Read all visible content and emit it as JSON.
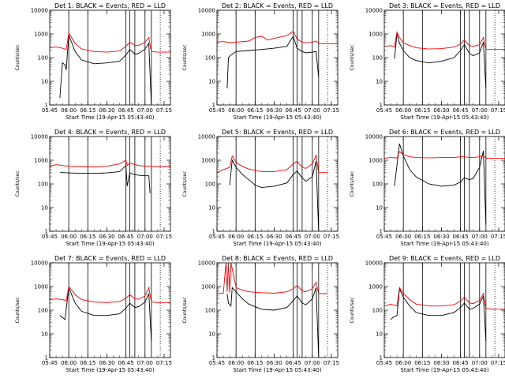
{
  "figure": {
    "background": "#ffffff",
    "events_color": "#000000",
    "lld_color": "#ff0000"
  },
  "chart_data": [
    {
      "type": "line",
      "title": "Det  1: BLACK = Events, RED = LLD",
      "xlabel": "Start Time (19-Apr-15 05:43:40)",
      "ylabel": "Counts/sec",
      "yscale": "log",
      "ylim": [
        1,
        10000
      ],
      "ytick_labels": [
        "1",
        "10",
        "100",
        "1000",
        "10000"
      ],
      "xlim": [
        "05:45",
        "07:20"
      ],
      "xtick_labels": [
        "05:45",
        "06:00",
        "06:15",
        "06:30",
        "06:45",
        "07:00",
        "07:15"
      ],
      "series": [
        {
          "name": "Events",
          "color": "#000000",
          "x": [
            "05:53",
            "05:55",
            "05:57",
            "05:58",
            "06:00",
            "06:05",
            "06:10",
            "06:20",
            "06:30",
            "06:40",
            "06:45",
            "06:48",
            "06:52",
            "06:55",
            "07:00",
            "07:03",
            "07:05"
          ],
          "y": [
            2,
            60,
            50,
            30,
            900,
            180,
            80,
            55,
            60,
            70,
            130,
            220,
            140,
            150,
            230,
            400,
            1
          ]
        },
        {
          "name": "LLD",
          "color": "#ff0000",
          "x": [
            "05:45",
            "05:50",
            "05:55",
            "05:58",
            "06:00",
            "06:05",
            "06:10",
            "06:20",
            "06:30",
            "06:40",
            "06:45",
            "06:48",
            "06:52",
            "06:55",
            "07:00",
            "07:03",
            "07:05",
            "07:10",
            "07:15",
            "07:20"
          ],
          "y": [
            260,
            280,
            250,
            220,
            1100,
            400,
            230,
            180,
            170,
            190,
            300,
            450,
            320,
            330,
            450,
            700,
            180,
            170,
            170,
            170
          ]
        }
      ]
    },
    {
      "type": "line",
      "title": "Det  2: BLACK = Events, RED = LLD",
      "xlabel": "Start Time (19-Apr-15 05:43:40)",
      "ylabel": "Counts/sec",
      "yscale": "log",
      "ylim": [
        1,
        10000
      ],
      "ytick_labels": [
        "1",
        "10",
        "100",
        "1000",
        "10000"
      ],
      "xlim": [
        "05:45",
        "07:20"
      ],
      "xtick_labels": [
        "05:45",
        "06:00",
        "06:15",
        "06:30",
        "06:45",
        "07:00",
        "07:15"
      ],
      "series": [
        {
          "name": "Events",
          "color": "#000000",
          "x": [
            "05:53",
            "05:54",
            "05:56",
            "05:58",
            "06:00",
            "06:10",
            "06:20",
            "06:30",
            "06:40",
            "06:45",
            "06:48",
            "06:52",
            "06:55",
            "07:00",
            "07:03",
            "07:05"
          ],
          "y": [
            5,
            100,
            130,
            150,
            180,
            200,
            220,
            250,
            300,
            800,
            250,
            180,
            160,
            170,
            180,
            15
          ]
        },
        {
          "name": "LLD",
          "color": "#ff0000",
          "x": [
            "05:45",
            "05:50",
            "05:55",
            "06:00",
            "06:10",
            "06:15",
            "06:20",
            "06:25",
            "06:30",
            "06:40",
            "06:45",
            "06:48",
            "06:52",
            "06:55",
            "07:00",
            "07:03",
            "07:05",
            "07:10",
            "07:20"
          ],
          "y": [
            450,
            480,
            430,
            450,
            500,
            700,
            800,
            550,
            650,
            850,
            1300,
            600,
            450,
            420,
            450,
            500,
            400,
            380,
            380
          ]
        }
      ]
    },
    {
      "type": "line",
      "title": "Det  3: BLACK = Events, RED = LLD",
      "xlabel": "Start Time (19-Apr-15 05:43:40)",
      "ylabel": "Counts/sec",
      "yscale": "log",
      "ylim": [
        1,
        10000
      ],
      "ytick_labels": [
        "1",
        "10",
        "100",
        "1000",
        "10000"
      ],
      "xlim": [
        "05:45",
        "07:20"
      ],
      "xtick_labels": [
        "05:45",
        "06:00",
        "06:15",
        "06:30",
        "06:45",
        "07:00",
        "07:15"
      ],
      "series": [
        {
          "name": "Events",
          "color": "#000000",
          "x": [
            "05:53",
            "05:55",
            "05:57",
            "06:00",
            "06:05",
            "06:10",
            "06:20",
            "06:30",
            "06:40",
            "06:45",
            "06:48",
            "06:52",
            "06:55",
            "07:00",
            "07:03",
            "07:05"
          ],
          "y": [
            90,
            1000,
            400,
            200,
            100,
            75,
            60,
            70,
            100,
            200,
            350,
            150,
            120,
            160,
            450,
            5
          ]
        },
        {
          "name": "LLD",
          "color": "#ff0000",
          "x": [
            "05:45",
            "05:50",
            "05:53",
            "05:55",
            "05:57",
            "06:00",
            "06:05",
            "06:10",
            "06:20",
            "06:30",
            "06:40",
            "06:45",
            "06:48",
            "06:52",
            "06:55",
            "07:00",
            "07:03",
            "07:05",
            "07:10",
            "07:20"
          ],
          "y": [
            300,
            320,
            280,
            1200,
            700,
            420,
            320,
            260,
            230,
            240,
            280,
            380,
            550,
            320,
            300,
            350,
            700,
            220,
            220,
            220
          ]
        }
      ]
    },
    {
      "type": "line",
      "title": "Det  4: BLACK = Events, RED = LLD",
      "xlabel": "Start Time (19-Apr-15 05:43:40)",
      "ylabel": "Counts/sec",
      "yscale": "log",
      "ylim": [
        1,
        10000
      ],
      "ytick_labels": [
        "1",
        "10",
        "100",
        "1000",
        "10000"
      ],
      "xlim": [
        "05:45",
        "07:20"
      ],
      "xtick_labels": [
        "05:45",
        "06:00",
        "06:15",
        "06:30",
        "06:45",
        "07:00",
        "07:15"
      ],
      "series": [
        {
          "name": "Events",
          "color": "#000000",
          "x": [
            "05:53",
            "05:55",
            "06:00",
            "06:10",
            "06:20",
            "06:30",
            "06:40",
            "06:45",
            "06:46",
            "06:48",
            "06:50",
            "06:55",
            "07:00",
            "07:03",
            "07:04"
          ],
          "y": [
            300,
            300,
            290,
            280,
            280,
            290,
            330,
            600,
            80,
            300,
            260,
            230,
            220,
            220,
            40
          ]
        },
        {
          "name": "LLD",
          "color": "#ff0000",
          "x": [
            "05:45",
            "05:50",
            "05:55",
            "06:00",
            "06:10",
            "06:20",
            "06:30",
            "06:40",
            "06:45",
            "06:46",
            "06:48",
            "06:52",
            "06:55",
            "07:00",
            "07:05",
            "07:10",
            "07:20"
          ],
          "y": [
            550,
            650,
            600,
            560,
            540,
            520,
            560,
            700,
            1000,
            600,
            750,
            650,
            600,
            560,
            550,
            540,
            540
          ]
        }
      ]
    },
    {
      "type": "line",
      "title": "Det  5: BLACK = Events, RED = LLD",
      "xlabel": "Start Time (19-Apr-15 05:43:40)",
      "ylabel": "Counts/sec",
      "yscale": "log",
      "ylim": [
        1,
        10000
      ],
      "ytick_labels": [
        "1",
        "10",
        "100",
        "1000",
        "10000"
      ],
      "xlim": [
        "05:45",
        "07:20"
      ],
      "xtick_labels": [
        "05:45",
        "06:00",
        "06:15",
        "06:30",
        "06:45",
        "07:00",
        "07:15"
      ],
      "series": [
        {
          "name": "Events",
          "color": "#000000",
          "x": [
            "05:55",
            "05:57",
            "06:00",
            "06:05",
            "06:10",
            "06:15",
            "06:20",
            "06:30",
            "06:40",
            "06:45",
            "06:48",
            "06:52",
            "06:55",
            "07:00",
            "07:03",
            "07:05"
          ],
          "y": [
            90,
            1000,
            500,
            250,
            150,
            90,
            70,
            80,
            110,
            250,
            350,
            180,
            130,
            200,
            900,
            1
          ]
        },
        {
          "name": "LLD",
          "color": "#ff0000",
          "x": [
            "05:45",
            "05:50",
            "05:55",
            "05:57",
            "06:00",
            "06:05",
            "06:10",
            "06:20",
            "06:30",
            "06:40",
            "06:45",
            "06:48",
            "06:52",
            "06:55",
            "07:00",
            "07:03",
            "07:05",
            "07:10",
            "07:12"
          ],
          "y": [
            300,
            400,
            500,
            1500,
            800,
            550,
            420,
            330,
            330,
            400,
            700,
            900,
            500,
            450,
            700,
            1600,
            300,
            300,
            300
          ]
        }
      ]
    },
    {
      "type": "line",
      "title": "Det  6: BLACK = Events, RED = LLD",
      "xlabel": "Start Time (19-Apr-15 05:43:40)",
      "ylabel": "Counts/sec",
      "yscale": "log",
      "ylim": [
        1,
        10000
      ],
      "ytick_labels": [
        "1",
        "10",
        "100",
        "1000",
        "10000"
      ],
      "xlim": [
        "05:45",
        "07:20"
      ],
      "xtick_labels": [
        "05:45",
        "06:00",
        "06:15",
        "06:30",
        "06:45",
        "07:00",
        "07:15"
      ],
      "series": [
        {
          "name": "Events",
          "color": "#000000",
          "x": [
            "05:53",
            "05:57",
            "06:00",
            "06:05",
            "06:10",
            "06:20",
            "06:30",
            "06:40",
            "06:45",
            "06:48",
            "06:52",
            "06:55",
            "07:00",
            "07:03",
            "07:05"
          ],
          "y": [
            80,
            5000,
            1500,
            400,
            200,
            100,
            80,
            90,
            120,
            180,
            150,
            170,
            500,
            2500,
            2
          ]
        },
        {
          "name": "LLD",
          "color": "#ff0000",
          "x": [
            "05:45",
            "05:50",
            "05:55",
            "05:57",
            "06:00",
            "06:05",
            "06:10",
            "06:20",
            "06:30",
            "06:40",
            "06:45",
            "06:50",
            "06:55",
            "07:00",
            "07:03",
            "07:05",
            "07:10",
            "07:20"
          ],
          "y": [
            1200,
            1300,
            1250,
            2300,
            1700,
            1400,
            1300,
            1250,
            1300,
            1300,
            1400,
            1350,
            1300,
            1400,
            1600,
            1200,
            1200,
            1200
          ]
        }
      ]
    },
    {
      "type": "line",
      "title": "Det  7: BLACK = Events, RED = LLD",
      "xlabel": "Start Time (19-Apr-15 05:43:40)",
      "ylabel": "Counts/sec",
      "yscale": "log",
      "ylim": [
        1,
        10000
      ],
      "ytick_labels": [
        "1",
        "10",
        "100",
        "1000",
        "10000"
      ],
      "xlim": [
        "05:45",
        "07:20"
      ],
      "xtick_labels": [
        "05:45",
        "06:00",
        "06:15",
        "06:30",
        "06:45",
        "07:00",
        "07:15"
      ],
      "series": [
        {
          "name": "Events",
          "color": "#000000",
          "x": [
            "05:53",
            "05:55",
            "05:57",
            "06:00",
            "06:05",
            "06:10",
            "06:20",
            "06:30",
            "06:40",
            "06:45",
            "06:48",
            "06:52",
            "06:55",
            "07:00",
            "07:03",
            "07:05"
          ],
          "y": [
            60,
            50,
            40,
            900,
            200,
            90,
            60,
            60,
            70,
            120,
            200,
            130,
            140,
            220,
            500,
            5
          ]
        },
        {
          "name": "LLD",
          "color": "#ff0000",
          "x": [
            "05:45",
            "05:50",
            "05:55",
            "05:58",
            "06:00",
            "06:05",
            "06:10",
            "06:20",
            "06:30",
            "06:40",
            "06:45",
            "06:48",
            "06:52",
            "06:55",
            "07:00",
            "07:03",
            "07:05",
            "07:10",
            "07:20"
          ],
          "y": [
            280,
            300,
            280,
            250,
            1000,
            450,
            280,
            220,
            210,
            230,
            320,
            450,
            300,
            290,
            400,
            900,
            220,
            210,
            210
          ]
        }
      ]
    },
    {
      "type": "line",
      "title": "Det  8: BLACK = Events, RED = LLD",
      "xlabel": "Start Time (19-Apr-15 05:43:40)",
      "ylabel": "Counts/sec",
      "yscale": "log",
      "ylim": [
        1,
        10000
      ],
      "ytick_labels": [
        "1",
        "10",
        "100",
        "1000",
        "10000"
      ],
      "xlim": [
        "05:45",
        "07:20"
      ],
      "xtick_labels": [
        "05:45",
        "06:00",
        "06:15",
        "06:30",
        "06:45",
        "07:00",
        "07:15"
      ],
      "series": [
        {
          "name": "Events",
          "color": "#000000",
          "x": [
            "05:53",
            "05:54",
            "05:56",
            "05:57",
            "06:00",
            "06:05",
            "06:10",
            "06:20",
            "06:30",
            "06:40",
            "06:45",
            "06:48",
            "06:52",
            "06:55",
            "07:00",
            "07:03",
            "07:05"
          ],
          "y": [
            500,
            200,
            150,
            900,
            600,
            300,
            180,
            110,
            100,
            130,
            250,
            400,
            200,
            170,
            300,
            900,
            1
          ]
        },
        {
          "name": "LLD",
          "color": "#ff0000",
          "x": [
            "05:45",
            "05:50",
            "05:52",
            "05:53",
            "05:54",
            "05:55",
            "05:56",
            "06:00",
            "06:05",
            "06:10",
            "06:20",
            "06:30",
            "06:40",
            "06:45",
            "06:48",
            "06:52",
            "06:55",
            "07:00",
            "07:03",
            "07:05",
            "07:10",
            "07:12"
          ],
          "y": [
            500,
            520,
            10000,
            600,
            10000,
            550,
            10000,
            900,
            700,
            600,
            550,
            520,
            600,
            800,
            1100,
            650,
            600,
            800,
            1500,
            500,
            500,
            500
          ]
        }
      ]
    },
    {
      "type": "line",
      "title": "Det  9: BLACK = Events, RED = LLD",
      "xlabel": "Start Time (19-Apr-15 05:43:40)",
      "ylabel": "Counts/sec",
      "yscale": "log",
      "ylim": [
        1,
        10000
      ],
      "ytick_labels": [
        "1",
        "10",
        "100",
        "1000",
        "10000"
      ],
      "xlim": [
        "05:45",
        "07:20"
      ],
      "xtick_labels": [
        "05:45",
        "06:00",
        "06:15",
        "06:30",
        "06:45",
        "07:00",
        "07:15"
      ],
      "series": [
        {
          "name": "Events",
          "color": "#000000",
          "x": [
            "05:50",
            "05:52",
            "05:55",
            "05:57",
            "06:00",
            "06:05",
            "06:10",
            "06:20",
            "06:30",
            "06:40",
            "06:45",
            "06:48",
            "06:52",
            "06:55",
            "07:00",
            "07:03",
            "07:05"
          ],
          "y": [
            40,
            50,
            60,
            800,
            350,
            150,
            80,
            60,
            60,
            80,
            130,
            200,
            110,
            120,
            180,
            400,
            5
          ]
        },
        {
          "name": "LLD",
          "color": "#ff0000",
          "x": [
            "05:45",
            "05:50",
            "05:55",
            "05:57",
            "06:00",
            "06:05",
            "06:10",
            "06:20",
            "06:30",
            "06:40",
            "06:45",
            "06:48",
            "06:52",
            "06:55",
            "07:00",
            "07:03",
            "07:05",
            "07:10",
            "07:20"
          ],
          "y": [
            150,
            180,
            150,
            900,
            500,
            280,
            180,
            150,
            150,
            170,
            250,
            350,
            200,
            190,
            260,
            500,
            120,
            110,
            110
          ]
        }
      ]
    }
  ]
}
